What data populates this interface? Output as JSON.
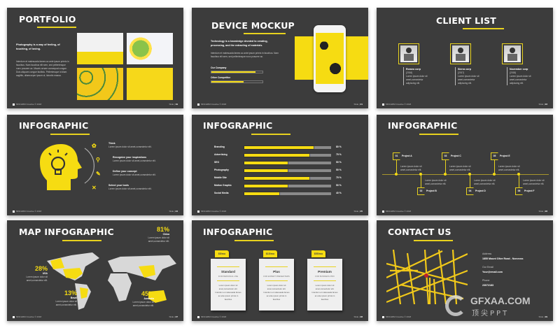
{
  "accent": "#f6dc12",
  "footer": "MNCHRM Creative © 2018",
  "slide_label": "Slide |",
  "slides": {
    "portfolio": {
      "title": "PORTFOLIO",
      "lead": "Photography is a way of feeling, of touching, of loving.",
      "body": "Interdum et malesuada fames ac ante ipsum primis in faucibus. Nam faucibus elit sem, sed pellentesque nunc posuere ac. Mauris ornare consequat congue. Duis aliquam congue facilisis. Pellentesque id diam sagittis, ullamcorper ipsum ut, lobortis massa.",
      "num": "19"
    },
    "device": {
      "title": "DEVICE MOCKUP",
      "lead": "Technology is a knowledge devoted to creating, processing, and the extracting of materials.",
      "body": "Interdum et malesuada fames ac ante ipsum primis in faucibus. Nam faucibus elit sem, sed pellentesque nunc posuere ac.",
      "bars": [
        {
          "label": "Our Company",
          "percent": 86
        },
        {
          "label": "Other Competitor",
          "percent": 63
        }
      ],
      "num": "21"
    },
    "clients": {
      "title": "CLIENT LIST",
      "items": [
        {
          "name": "Romeo corp",
          "year": "(2016)",
          "desc": "Lorem ipsum dolor sit amet,consectetur adipiscing elit."
        },
        {
          "name": "Sierra corp",
          "year": "(2017)",
          "desc": "Lorem ipsum dolor sit amet,consectetur adipiscing elit."
        },
        {
          "name": "November corp",
          "year": "(2018)",
          "desc": "Lorem ipsum dolor sit amet,consectetur adipiscing elit."
        }
      ],
      "num": "22"
    },
    "head": {
      "title": "INFOGRAPHIC",
      "items": [
        {
          "icon": "brain-icon",
          "title": "Think",
          "desc": "Lorem ipsum dolor sit amet,consectetur elit."
        },
        {
          "icon": "search-icon",
          "title": "Recognize your inspirations",
          "desc": "Lorem ipsum dolor sit amet,consectetur elit."
        },
        {
          "icon": "edit-icon",
          "title": "Define your concept",
          "desc": "Lorem ipsum dolor sit amet,consectetur elit."
        },
        {
          "icon": "tools-icon",
          "title": "Select your tools",
          "desc": "Lorem ipsum dolor sit amet,consectetur elit."
        }
      ],
      "num": "24"
    },
    "bars": {
      "title": "INFOGRAPHIC",
      "items": [
        {
          "label": "Branding",
          "value": 80,
          "text": "80 %"
        },
        {
          "label": "Advertising",
          "value": 75,
          "text": "75 %"
        },
        {
          "label": "SEO",
          "value": 50,
          "text": "50 %"
        },
        {
          "label": "Photography",
          "value": 50,
          "text": "50 %"
        },
        {
          "label": "Mobile Site",
          "value": 75,
          "text": "75 %"
        },
        {
          "label": "Motion Graphic",
          "value": 50,
          "text": "50 %"
        },
        {
          "label": "Social Media",
          "value": 40,
          "text": "40 %"
        }
      ],
      "num": "25"
    },
    "timeline": {
      "title": "INFOGRAPHIC",
      "items": [
        {
          "n": "01",
          "name": "Project A",
          "desc": "Lorem ipsum dolor sit amet,consectetur elit."
        },
        {
          "n": "02",
          "name": "Project B",
          "desc": "Lorem ipsum dolor sit amet,consectetur elit."
        },
        {
          "n": "03",
          "name": "Project C",
          "desc": "Lorem ipsum dolor sit amet,consectetur elit."
        },
        {
          "n": "04",
          "name": "Project D",
          "desc": "Lorem ipsum dolor sit amet,consectetur elit."
        },
        {
          "n": "05",
          "name": "Project E",
          "desc": "Lorem ipsum dolor sit amet,consectetur elit."
        },
        {
          "n": "06",
          "name": "Project F",
          "desc": "Lorem ipsum dolor sit amet,consectetur elit."
        }
      ],
      "num": "26"
    },
    "map": {
      "title": "MAP INFOGRAPHIC",
      "stats": [
        {
          "pct": "81%",
          "country": "China",
          "desc": "Lorem ipsum dolor sit amet,consectetur elit."
        },
        {
          "pct": "28%",
          "country": "USA",
          "desc": "Lorem ipsum dolor sit amet,consectetur elit."
        },
        {
          "pct": "13%",
          "country": "Brazil",
          "desc": "Lorem ipsum dolor sit amet,consectetur elit."
        },
        {
          "pct": "45%",
          "country": "Australia",
          "desc": "Lorem ipsum dolor sit amet,consectetur elit."
        }
      ],
      "num": "27"
    },
    "pricing": {
      "title": "INFOGRAPHIC",
      "plans": [
        {
          "price": "$5/mo",
          "name": "Standard",
          "sub": "FOR PERSONAL USE",
          "desc": "Lorem ipsum dolor sit amet,consectetur elit. Interdum et malesuada fames ac ante ipsum primis in faucibus"
        },
        {
          "price": "$15/mo",
          "name": "Plus",
          "sub": "FOR EXPERT PRESENTERS",
          "desc": "Lorem ipsum dolor sit amet,consectetur elit. Interdum et malesuada fames ac ante ipsum primis in faucibus"
        },
        {
          "price": "$55/mo",
          "name": "Premium",
          "sub": "FOR BUSINESS PRO",
          "desc": "Lorem ipsum dolor sit amet,consectetur elit. Interdum et malesuada fames ac ante ipsum primis in faucibus"
        }
      ],
      "num": "28"
    },
    "contact": {
      "title": "CONTACT US",
      "fields": [
        {
          "label": "Address",
          "value": "1855 Mount Olive Road - Norcross"
        },
        {
          "label": "Our Email",
          "value": "Your@email.com"
        },
        {
          "label": "Phone",
          "value": "23072183"
        }
      ],
      "num": "29"
    }
  },
  "watermark": {
    "brand": "GFXAA.COM",
    "sub": "顶尖PPT"
  }
}
